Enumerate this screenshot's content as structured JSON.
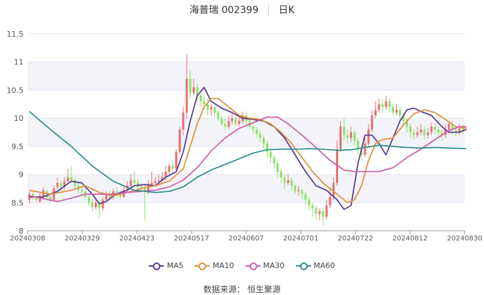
{
  "header": {
    "stock_name_code": "海普瑞 002399",
    "period": "日K"
  },
  "footer": {
    "source": "数据来源： 恒生聚源"
  },
  "chart_data": {
    "type": "candlestick",
    "ylim": [
      8,
      11.5
    ],
    "yticks": [
      "8",
      "8.5",
      "9",
      "9.5",
      "10",
      "10.5",
      "11",
      "11.5"
    ],
    "xticks": [
      "20240308",
      "20240329",
      "20240423",
      "20240517",
      "20240607",
      "20240701",
      "20240722",
      "20240812",
      "20240830"
    ],
    "colors": {
      "up": "#e86f6f",
      "down": "#8fe16a",
      "MA5": "#5a3d8e",
      "MA10": "#e0913f",
      "MA30": "#cf5fa9",
      "MA60": "#2f8f8f"
    },
    "series": [
      {
        "name": "MA5",
        "points": [
          [
            0,
            8.6
          ],
          [
            4,
            8.6
          ],
          [
            8,
            8.7
          ],
          [
            12,
            8.88
          ],
          [
            15,
            8.85
          ],
          [
            18,
            8.65
          ],
          [
            20,
            8.48
          ],
          [
            22,
            8.52
          ],
          [
            24,
            8.62
          ],
          [
            26,
            8.68
          ],
          [
            28,
            8.72
          ],
          [
            30,
            8.8
          ],
          [
            33,
            8.82
          ],
          [
            36,
            8.8
          ],
          [
            39,
            8.95
          ],
          [
            42,
            9.05
          ],
          [
            44,
            9.4
          ],
          [
            46,
            9.95
          ],
          [
            48,
            10.4
          ],
          [
            50,
            10.55
          ],
          [
            52,
            10.3
          ],
          [
            55,
            10.18
          ],
          [
            58,
            10.1
          ],
          [
            61,
            10.0
          ],
          [
            64,
            9.98
          ],
          [
            67,
            9.95
          ],
          [
            70,
            9.85
          ],
          [
            73,
            9.65
          ],
          [
            76,
            9.35
          ],
          [
            79,
            9.05
          ],
          [
            82,
            8.8
          ],
          [
            85,
            8.72
          ],
          [
            88,
            8.55
          ],
          [
            90,
            8.38
          ],
          [
            92,
            8.45
          ],
          [
            94,
            9.2
          ],
          [
            96,
            9.7
          ],
          [
            98,
            9.7
          ],
          [
            100,
            9.55
          ],
          [
            102,
            9.35
          ],
          [
            104,
            9.65
          ],
          [
            106,
            9.95
          ],
          [
            108,
            10.15
          ],
          [
            110,
            10.18
          ],
          [
            112,
            10.12
          ],
          [
            115,
            10.05
          ],
          [
            118,
            9.85
          ],
          [
            120,
            9.75
          ],
          [
            123,
            9.75
          ],
          [
            125,
            9.8
          ]
        ]
      },
      {
        "name": "MA10",
        "points": [
          [
            0,
            8.72
          ],
          [
            6,
            8.65
          ],
          [
            12,
            8.72
          ],
          [
            16,
            8.8
          ],
          [
            20,
            8.68
          ],
          [
            24,
            8.62
          ],
          [
            28,
            8.68
          ],
          [
            32,
            8.75
          ],
          [
            36,
            8.8
          ],
          [
            40,
            8.88
          ],
          [
            44,
            9.1
          ],
          [
            46,
            9.5
          ],
          [
            48,
            9.9
          ],
          [
            50,
            10.2
          ],
          [
            52,
            10.35
          ],
          [
            54,
            10.35
          ],
          [
            57,
            10.2
          ],
          [
            60,
            10.05
          ],
          [
            63,
            10.0
          ],
          [
            66,
            9.98
          ],
          [
            69,
            9.9
          ],
          [
            72,
            9.75
          ],
          [
            75,
            9.55
          ],
          [
            78,
            9.3
          ],
          [
            81,
            9.05
          ],
          [
            84,
            8.85
          ],
          [
            88,
            8.65
          ],
          [
            91,
            8.5
          ],
          [
            93,
            8.55
          ],
          [
            95,
            8.8
          ],
          [
            97,
            9.25
          ],
          [
            99,
            9.55
          ],
          [
            101,
            9.62
          ],
          [
            104,
            9.65
          ],
          [
            107,
            9.88
          ],
          [
            110,
            10.08
          ],
          [
            113,
            10.15
          ],
          [
            116,
            10.1
          ],
          [
            119,
            9.98
          ],
          [
            122,
            9.85
          ],
          [
            125,
            9.82
          ]
        ]
      },
      {
        "name": "MA30",
        "points": [
          [
            0,
            8.62
          ],
          [
            4,
            8.57
          ],
          [
            8,
            8.52
          ],
          [
            12,
            8.58
          ],
          [
            16,
            8.65
          ],
          [
            20,
            8.65
          ],
          [
            24,
            8.65
          ],
          [
            28,
            8.68
          ],
          [
            32,
            8.7
          ],
          [
            36,
            8.72
          ],
          [
            40,
            8.78
          ],
          [
            44,
            8.9
          ],
          [
            48,
            9.12
          ],
          [
            52,
            9.42
          ],
          [
            56,
            9.65
          ],
          [
            60,
            9.82
          ],
          [
            64,
            9.92
          ],
          [
            68,
            10.02
          ],
          [
            71,
            10.02
          ],
          [
            74,
            9.9
          ],
          [
            78,
            9.7
          ],
          [
            82,
            9.48
          ],
          [
            86,
            9.25
          ],
          [
            90,
            9.08
          ],
          [
            93,
            9.05
          ],
          [
            96,
            9.05
          ],
          [
            100,
            9.05
          ],
          [
            104,
            9.12
          ],
          [
            108,
            9.3
          ],
          [
            112,
            9.45
          ],
          [
            116,
            9.62
          ],
          [
            120,
            9.78
          ],
          [
            123,
            9.85
          ],
          [
            125,
            9.85
          ]
        ]
      },
      {
        "name": "MA60",
        "points": [
          [
            0,
            10.12
          ],
          [
            6,
            9.8
          ],
          [
            12,
            9.5
          ],
          [
            18,
            9.15
          ],
          [
            24,
            8.88
          ],
          [
            30,
            8.72
          ],
          [
            36,
            8.68
          ],
          [
            40,
            8.7
          ],
          [
            44,
            8.78
          ],
          [
            48,
            8.95
          ],
          [
            52,
            9.08
          ],
          [
            56,
            9.18
          ],
          [
            60,
            9.28
          ],
          [
            64,
            9.38
          ],
          [
            68,
            9.44
          ],
          [
            72,
            9.45
          ],
          [
            76,
            9.45
          ],
          [
            80,
            9.46
          ],
          [
            84,
            9.45
          ],
          [
            88,
            9.43
          ],
          [
            92,
            9.44
          ],
          [
            96,
            9.48
          ],
          [
            100,
            9.52
          ],
          [
            104,
            9.5
          ],
          [
            108,
            9.48
          ],
          [
            112,
            9.47
          ],
          [
            116,
            9.48
          ],
          [
            120,
            9.47
          ],
          [
            125,
            9.46
          ]
        ]
      }
    ],
    "candles": [
      [
        8.55,
        8.65,
        8.7,
        8.48
      ],
      [
        8.65,
        8.6,
        8.7,
        8.55
      ],
      [
        8.6,
        8.55,
        8.62,
        8.5
      ],
      [
        8.52,
        8.62,
        8.68,
        8.5
      ],
      [
        8.6,
        8.72,
        8.78,
        8.58
      ],
      [
        8.7,
        8.6,
        8.74,
        8.55
      ],
      [
        8.6,
        8.55,
        8.65,
        8.5
      ],
      [
        8.55,
        8.75,
        8.8,
        8.52
      ],
      [
        8.78,
        8.85,
        8.95,
        8.72
      ],
      [
        8.85,
        8.78,
        8.9,
        8.7
      ],
      [
        8.78,
        8.88,
        8.95,
        8.72
      ],
      [
        8.88,
        8.95,
        9.1,
        8.85
      ],
      [
        8.95,
        8.9,
        9.15,
        8.85
      ],
      [
        8.9,
        8.8,
        8.95,
        8.75
      ],
      [
        8.8,
        8.72,
        8.85,
        8.65
      ],
      [
        8.72,
        8.7,
        8.78,
        8.6
      ],
      [
        8.7,
        8.6,
        8.75,
        8.55
      ],
      [
        8.6,
        8.5,
        8.65,
        8.45
      ],
      [
        8.5,
        8.42,
        8.55,
        8.35
      ],
      [
        8.42,
        8.5,
        8.55,
        8.38
      ],
      [
        8.5,
        8.4,
        8.55,
        8.22
      ],
      [
        8.4,
        8.55,
        8.6,
        8.35
      ],
      [
        8.55,
        8.65,
        8.7,
        8.5
      ],
      [
        8.65,
        8.6,
        8.72,
        8.55
      ],
      [
        8.6,
        8.7,
        8.75,
        8.55
      ],
      [
        8.7,
        8.65,
        8.78,
        8.58
      ],
      [
        8.65,
        8.6,
        8.7,
        8.55
      ],
      [
        8.6,
        8.72,
        8.8,
        8.58
      ],
      [
        8.72,
        8.8,
        8.88,
        8.68
      ],
      [
        8.8,
        8.9,
        9.0,
        8.75
      ],
      [
        8.9,
        8.85,
        9.05,
        8.8
      ],
      [
        8.85,
        8.78,
        8.92,
        8.7
      ],
      [
        8.78,
        8.75,
        8.85,
        8.7
      ],
      [
        8.75,
        8.7,
        8.8,
        8.18
      ],
      [
        8.7,
        8.82,
        8.9,
        8.65
      ],
      [
        8.82,
        8.85,
        9.05,
        8.78
      ],
      [
        8.85,
        8.88,
        8.95,
        8.8
      ],
      [
        8.88,
        8.9,
        9.0,
        8.82
      ],
      [
        8.9,
        8.95,
        9.05,
        8.85
      ],
      [
        8.95,
        9.05,
        9.15,
        8.9
      ],
      [
        9.05,
        9.15,
        9.2,
        9.0
      ],
      [
        9.15,
        9.1,
        9.25,
        9.05
      ],
      [
        9.1,
        9.4,
        9.45,
        9.05
      ],
      [
        9.4,
        9.8,
        9.85,
        9.35
      ],
      [
        9.8,
        10.1,
        10.2,
        9.7
      ],
      [
        10.1,
        10.7,
        11.15,
        10.0
      ],
      [
        10.7,
        10.45,
        10.85,
        10.35
      ],
      [
        10.45,
        10.55,
        10.7,
        10.4
      ],
      [
        10.55,
        10.4,
        10.62,
        10.3
      ],
      [
        10.4,
        10.3,
        10.45,
        10.2
      ],
      [
        10.3,
        10.25,
        10.4,
        10.15
      ],
      [
        10.25,
        10.15,
        10.35,
        10.05
      ],
      [
        10.15,
        10.2,
        10.25,
        10.05
      ],
      [
        10.2,
        10.1,
        10.22,
        10.02
      ],
      [
        10.1,
        10.0,
        10.15,
        9.95
      ],
      [
        10.0,
        9.9,
        10.05,
        9.85
      ],
      [
        9.9,
        9.85,
        10.0,
        9.8
      ],
      [
        9.85,
        9.95,
        10.05,
        9.8
      ],
      [
        9.95,
        10.0,
        10.1,
        9.88
      ],
      [
        10.0,
        9.9,
        10.05,
        9.85
      ],
      [
        9.9,
        9.95,
        10.05,
        9.85
      ],
      [
        9.95,
        10.05,
        10.12,
        9.9
      ],
      [
        10.05,
        9.95,
        10.1,
        9.88
      ],
      [
        9.95,
        9.85,
        10.0,
        9.8
      ],
      [
        9.85,
        9.8,
        9.9,
        9.72
      ],
      [
        9.8,
        9.72,
        9.85,
        9.65
      ],
      [
        9.72,
        9.65,
        9.78,
        9.58
      ],
      [
        9.65,
        9.55,
        9.7,
        9.45
      ],
      [
        9.55,
        9.4,
        9.6,
        9.3
      ],
      [
        9.4,
        9.3,
        9.45,
        9.2
      ],
      [
        9.3,
        9.2,
        9.35,
        9.1
      ],
      [
        9.2,
        9.05,
        9.25,
        8.95
      ],
      [
        9.05,
        8.95,
        9.1,
        8.85
      ],
      [
        8.95,
        8.85,
        9.0,
        8.75
      ],
      [
        8.85,
        8.9,
        9.0,
        8.8
      ],
      [
        8.9,
        8.8,
        8.95,
        8.72
      ],
      [
        8.8,
        8.7,
        8.85,
        8.65
      ],
      [
        8.7,
        8.72,
        8.8,
        8.62
      ],
      [
        8.72,
        8.65,
        8.75,
        8.55
      ],
      [
        8.65,
        8.55,
        8.7,
        8.45
      ],
      [
        8.55,
        8.45,
        8.6,
        8.35
      ],
      [
        8.45,
        8.4,
        8.5,
        8.25
      ],
      [
        8.4,
        8.3,
        8.45,
        8.2
      ],
      [
        8.3,
        8.35,
        8.4,
        8.18
      ],
      [
        8.35,
        8.25,
        8.4,
        8.1
      ],
      [
        8.25,
        8.45,
        8.55,
        8.2
      ],
      [
        8.45,
        8.6,
        8.75,
        8.4
      ],
      [
        8.6,
        8.85,
        8.95,
        8.55
      ],
      [
        8.85,
        9.45,
        9.6,
        8.8
      ],
      [
        9.45,
        9.85,
        9.95,
        9.4
      ],
      [
        9.85,
        9.7,
        10.0,
        9.6
      ],
      [
        9.7,
        9.65,
        9.8,
        9.55
      ],
      [
        9.65,
        9.75,
        9.85,
        9.58
      ],
      [
        9.75,
        9.6,
        9.8,
        9.5
      ],
      [
        9.6,
        9.45,
        9.65,
        9.35
      ],
      [
        9.45,
        9.35,
        9.5,
        9.25
      ],
      [
        9.35,
        9.55,
        9.65,
        9.3
      ],
      [
        9.55,
        9.8,
        9.9,
        9.5
      ],
      [
        9.8,
        10.05,
        10.15,
        9.75
      ],
      [
        10.05,
        10.15,
        10.3,
        10.0
      ],
      [
        10.15,
        10.25,
        10.35,
        10.1
      ],
      [
        10.25,
        10.2,
        10.35,
        10.1
      ],
      [
        10.2,
        10.3,
        10.4,
        10.15
      ],
      [
        10.3,
        10.2,
        10.35,
        10.1
      ],
      [
        10.2,
        10.1,
        10.25,
        10.05
      ],
      [
        10.1,
        10.15,
        10.25,
        10.05
      ],
      [
        10.15,
        10.05,
        10.2,
        9.95
      ],
      [
        10.05,
        9.95,
        10.1,
        9.88
      ],
      [
        9.95,
        9.85,
        10.0,
        9.75
      ],
      [
        9.85,
        9.75,
        9.9,
        9.65
      ],
      [
        9.75,
        9.7,
        9.8,
        9.62
      ],
      [
        9.7,
        9.75,
        9.85,
        9.65
      ],
      [
        9.75,
        9.8,
        9.9,
        9.7
      ],
      [
        9.8,
        9.7,
        9.85,
        9.62
      ],
      [
        9.7,
        9.75,
        9.82,
        9.65
      ],
      [
        9.75,
        9.85,
        9.92,
        9.7
      ],
      [
        9.85,
        9.8,
        9.9,
        9.72
      ],
      [
        9.8,
        9.75,
        9.85,
        9.68
      ],
      [
        9.75,
        9.7,
        9.8,
        9.6
      ],
      [
        9.7,
        9.8,
        9.88,
        9.65
      ],
      [
        9.8,
        9.9,
        9.95,
        9.75
      ],
      [
        9.9,
        9.8,
        9.95,
        9.72
      ],
      [
        9.8,
        9.75,
        9.85,
        9.68
      ],
      [
        9.75,
        9.82,
        9.9,
        9.7
      ],
      [
        9.82,
        9.78,
        9.88,
        9.72
      ]
    ]
  }
}
